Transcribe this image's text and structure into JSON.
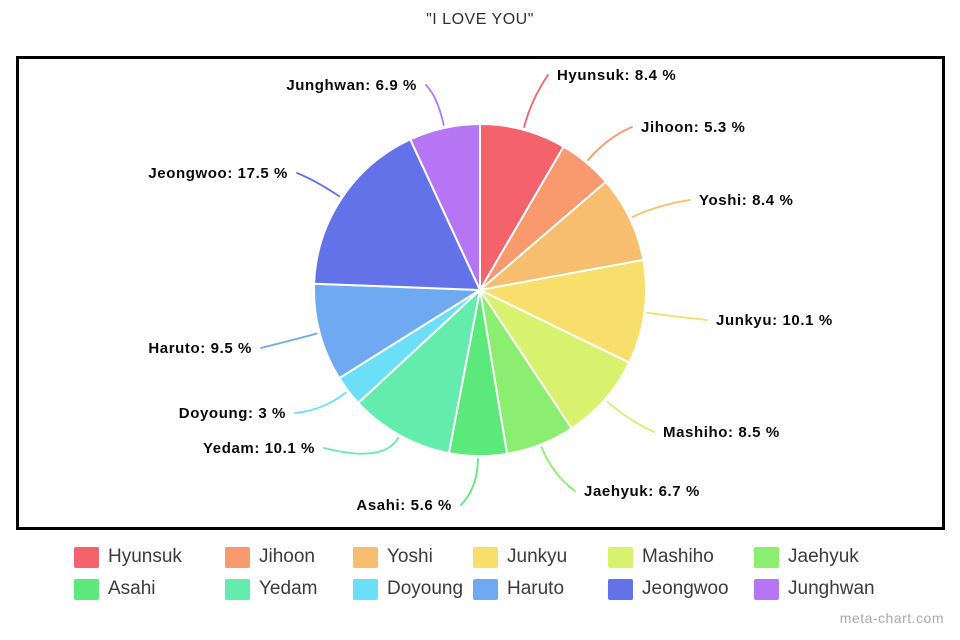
{
  "chart_data": {
    "type": "pie",
    "title": "\"I LOVE YOU\"",
    "legend_position": "bottom",
    "start_angle_deg": 0,
    "direction": "clockwise",
    "slices": [
      {
        "label": "Hyunsuk",
        "value": 8.4,
        "display": "Hyunsuk: 8.4 %",
        "color": "#F4626C"
      },
      {
        "label": "Jihoon",
        "value": 5.3,
        "display": "Jihoon: 5.3 %",
        "color": "#F8996E"
      },
      {
        "label": "Yoshi",
        "value": 8.4,
        "display": "Yoshi: 8.4 %",
        "color": "#F6BE6E"
      },
      {
        "label": "Junkyu",
        "value": 10.1,
        "display": "Junkyu: 10.1 %",
        "color": "#F8DF6B"
      },
      {
        "label": "Mashiho",
        "value": 8.5,
        "display": "Mashiho: 8.5 %",
        "color": "#D8F16E"
      },
      {
        "label": "Jaehyuk",
        "value": 6.7,
        "display": "Jaehyuk: 6.7 %",
        "color": "#8BEE70"
      },
      {
        "label": "Asahi",
        "value": 5.6,
        "display": "Asahi: 5.6 %",
        "color": "#5CE97B"
      },
      {
        "label": "Yedam",
        "value": 10.1,
        "display": "Yedam: 10.1 %",
        "color": "#64ECAE"
      },
      {
        "label": "Doyoung",
        "value": 3,
        "display": "Doyoung: 3 %",
        "color": "#6ADFF7"
      },
      {
        "label": "Haruto",
        "value": 9.5,
        "display": "Haruto: 9.5 %",
        "color": "#6FA9F2"
      },
      {
        "label": "Jeongwoo",
        "value": 17.5,
        "display": "Jeongwoo: 17.5 %",
        "color": "#6472E9"
      },
      {
        "label": "Junghwan",
        "value": 6.9,
        "display": "Junghwan: 6.9 %",
        "color": "#B676F3"
      }
    ]
  },
  "watermark": "meta-chart.com"
}
